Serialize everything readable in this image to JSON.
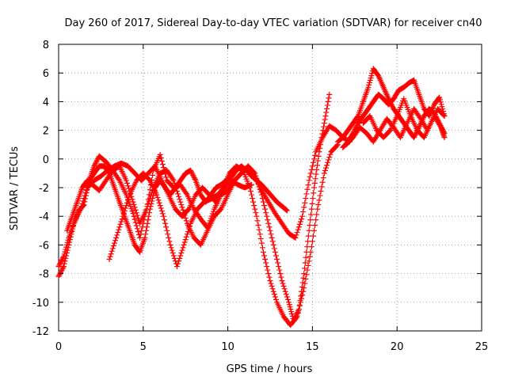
{
  "chart_data": {
    "type": "scatter",
    "title": "Day 260 of 2017, Sidereal Day-to-day VTEC variation (SDTVAR) for receiver cn40",
    "xlabel": "GPS time / hours",
    "ylabel": "SDTVAR / TECUs",
    "xlim": [
      0,
      25
    ],
    "ylim": [
      -12,
      8
    ],
    "xticks": [
      0,
      5,
      10,
      15,
      20,
      25
    ],
    "yticks": [
      -12,
      -10,
      -8,
      -6,
      -4,
      -2,
      0,
      2,
      4,
      6,
      8
    ],
    "grid": true,
    "marker": "+",
    "color": "#ff0000",
    "series": [
      {
        "x": [
          0.0,
          0.3,
          0.6,
          0.9,
          1.2,
          1.5,
          1.8,
          2.1,
          2.4,
          2.8,
          3.2,
          3.6,
          4.0,
          4.4,
          4.8,
          5.2,
          5.6,
          6.0,
          6.4,
          6.8,
          7.2,
          7.6,
          8.0,
          8.4,
          8.8,
          9.2,
          9.6,
          10.0,
          10.4,
          10.8,
          11.2,
          11.6,
          12.0,
          12.4,
          12.8,
          13.2,
          13.6,
          13.9,
          14.2,
          14.5,
          14.8,
          15.1,
          15.4,
          15.7,
          16.0
        ],
        "y": [
          -8.2,
          -7.5,
          -6.0,
          -4.5,
          -3.6,
          -3.2,
          -1.5,
          -0.5,
          0.2,
          -0.2,
          -0.8,
          -1.5,
          -2.5,
          -3.8,
          -5.5,
          -3.5,
          -0.8,
          0.3,
          -1.5,
          -2.0,
          -1.8,
          -2.5,
          -3.5,
          -4.2,
          -4.8,
          -3.5,
          -2.5,
          -2.2,
          -1.5,
          -1.0,
          -0.5,
          -1.0,
          -2.5,
          -4.5,
          -6.5,
          -8.5,
          -10.0,
          -11.3,
          -10.5,
          -8.0,
          -5.0,
          -2.0,
          0.5,
          2.5,
          4.5
        ]
      },
      {
        "x": [
          0.0,
          0.3,
          0.6,
          0.9,
          1.3,
          1.7,
          2.1,
          2.5,
          2.9,
          3.3,
          3.7,
          4.1,
          4.5,
          4.9,
          5.3,
          5.7,
          6.1,
          6.5,
          6.9,
          7.3,
          7.7,
          8.1,
          8.5,
          8.9,
          9.3,
          9.7,
          10.1,
          10.5,
          10.9,
          11.3,
          11.7,
          12.1,
          12.5,
          12.9,
          13.3,
          13.7,
          14.1,
          14.5,
          14.9,
          15.3,
          15.7,
          16.1,
          16.5
        ],
        "y": [
          -7.5,
          -6.8,
          -5.5,
          -4.5,
          -3.5,
          -2.0,
          -1.5,
          -1.2,
          -0.8,
          -0.5,
          -0.3,
          -0.5,
          -1.0,
          -1.5,
          -1.0,
          -0.5,
          -1.5,
          -2.5,
          -3.5,
          -4.0,
          -3.5,
          -2.5,
          -2.0,
          -2.5,
          -3.0,
          -2.0,
          -1.0,
          -0.5,
          -0.8,
          -2.0,
          -4.0,
          -6.5,
          -8.5,
          -10.0,
          -11.0,
          -11.6,
          -11.0,
          -9.0,
          -6.5,
          -3.5,
          -1.0,
          0.5,
          1.0
        ]
      },
      {
        "x": [
          0.5,
          0.8,
          1.1,
          1.4,
          1.7,
          2.0,
          2.4,
          2.8,
          3.2,
          3.6,
          4.0,
          4.4,
          4.8,
          5.2,
          5.6,
          6.0,
          6.4,
          6.8,
          7.2,
          7.6,
          8.0,
          8.4,
          8.8,
          9.2,
          9.6,
          10.0,
          10.4,
          10.8,
          11.2,
          11.6,
          12.0,
          12.4,
          12.8,
          13.2,
          13.6,
          14.0,
          14.4,
          14.8,
          15.2,
          15.6,
          16.0,
          16.4,
          16.8,
          17.2
        ],
        "y": [
          -5.0,
          -4.0,
          -3.0,
          -2.0,
          -1.5,
          -1.8,
          -2.2,
          -1.5,
          -0.8,
          -0.5,
          -1.5,
          -3.0,
          -4.5,
          -3.5,
          -2.0,
          -1.0,
          -0.8,
          -1.5,
          -3.0,
          -4.5,
          -5.5,
          -6.0,
          -5.0,
          -4.0,
          -3.5,
          -2.5,
          -1.5,
          -1.0,
          -0.5,
          -1.2,
          -2.2,
          -3.0,
          -3.8,
          -4.5,
          -5.2,
          -5.5,
          -4.0,
          -1.5,
          0.5,
          1.5,
          2.3,
          2.0,
          1.5,
          1.2
        ]
      },
      {
        "x": [
          1.5,
          1.8,
          2.1,
          2.4,
          2.7,
          3.0,
          3.3,
          3.6,
          3.9,
          4.2,
          4.5,
          4.8,
          5.1,
          5.4,
          5.7,
          6.0,
          6.3,
          6.6,
          6.9,
          7.2,
          7.5,
          7.8,
          8.1,
          8.4,
          8.7,
          9.0,
          9.3,
          9.6,
          9.9,
          10.2,
          10.5,
          10.8,
          11.1,
          11.4,
          11.7,
          12.0,
          12.3,
          12.6,
          12.9,
          13.2,
          13.5
        ],
        "y": [
          -1.8,
          -1.5,
          -1.0,
          -0.5,
          -0.5,
          -1.0,
          -2.0,
          -3.0,
          -4.0,
          -5.0,
          -6.0,
          -6.5,
          -5.5,
          -3.5,
          -2.0,
          -1.5,
          -2.0,
          -2.5,
          -2.0,
          -1.5,
          -1.0,
          -0.8,
          -1.5,
          -2.5,
          -3.0,
          -2.5,
          -2.0,
          -1.8,
          -1.5,
          -1.3,
          -0.8,
          -0.5,
          -0.8,
          -1.2,
          -1.5,
          -1.8,
          -2.2,
          -2.6,
          -3.0,
          -3.3,
          -3.6
        ]
      },
      {
        "x": [
          3.0,
          3.4,
          3.8,
          4.2,
          4.6,
          5.0,
          5.4,
          5.8,
          6.2,
          6.6,
          7.0,
          7.4,
          7.8,
          8.2,
          8.6,
          9.0,
          9.4,
          9.8,
          10.2,
          10.6,
          11.0,
          11.4
        ],
        "y": [
          -7.0,
          -5.5,
          -4.0,
          -2.5,
          -1.5,
          -1.0,
          -1.5,
          -2.5,
          -4.0,
          -6.0,
          -7.5,
          -6.0,
          -4.5,
          -3.5,
          -3.0,
          -2.8,
          -2.5,
          -2.0,
          -1.5,
          -1.8,
          -2.0,
          -1.8
        ]
      },
      {
        "x": [
          16.5,
          16.8,
          17.1,
          17.4,
          17.7,
          18.0,
          18.3,
          18.6,
          18.9,
          19.2,
          19.5,
          19.8,
          20.1,
          20.4,
          20.7,
          21.0,
          21.3,
          21.6,
          21.9,
          22.2,
          22.5,
          22.8
        ],
        "y": [
          1.2,
          1.5,
          2.0,
          2.5,
          3.0,
          4.0,
          5.0,
          6.3,
          5.8,
          5.0,
          4.2,
          3.5,
          3.0,
          2.5,
          2.0,
          1.5,
          2.2,
          3.0,
          3.5,
          3.2,
          2.5,
          1.8
        ]
      },
      {
        "x": [
          16.8,
          17.1,
          17.4,
          17.7,
          18.0,
          18.3,
          18.6,
          18.9,
          19.2,
          19.5,
          19.8,
          20.1,
          20.4,
          20.7,
          21.0,
          21.3,
          21.6,
          21.9,
          22.2,
          22.5,
          22.8
        ],
        "y": [
          0.8,
          1.2,
          1.8,
          2.5,
          3.0,
          3.5,
          4.0,
          4.5,
          4.2,
          3.8,
          4.2,
          4.8,
          5.0,
          5.3,
          5.5,
          4.5,
          3.5,
          3.0,
          3.8,
          4.3,
          3.0
        ]
      },
      {
        "x": [
          17.0,
          17.4,
          17.8,
          18.2,
          18.6,
          19.0,
          19.4,
          19.8,
          20.2,
          20.6,
          21.0,
          21.4,
          21.8,
          22.2,
          22.6,
          22.8
        ],
        "y": [
          1.0,
          1.5,
          2.2,
          1.8,
          1.2,
          2.0,
          2.8,
          2.2,
          1.5,
          2.5,
          3.5,
          2.8,
          2.0,
          3.0,
          2.2,
          1.5
        ]
      },
      {
        "x": [
          18.0,
          18.4,
          18.8,
          19.2,
          19.6,
          20.0,
          20.4,
          20.8,
          21.2,
          21.6,
          22.0,
          22.4,
          22.8
        ],
        "y": [
          2.5,
          3.0,
          2.0,
          1.5,
          2.0,
          3.0,
          4.2,
          3.0,
          2.0,
          1.5,
          2.5,
          3.5,
          3.0
        ]
      }
    ]
  }
}
